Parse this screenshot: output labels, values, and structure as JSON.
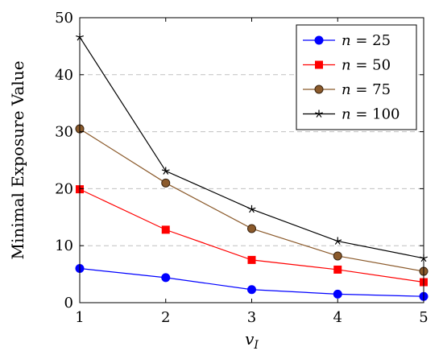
{
  "chart_data": {
    "type": "line",
    "xlabel": "v_I",
    "xlabel_main": "v",
    "xlabel_sub": "I",
    "ylabel": "Minimal Exposure Value",
    "xlim": [
      1,
      5
    ],
    "ylim": [
      0,
      50
    ],
    "x_ticks": [
      1,
      2,
      3,
      4,
      5
    ],
    "y_ticks": [
      0,
      10,
      20,
      30,
      40,
      50
    ],
    "grid": "horizontal dashed",
    "legend_position": "top-right",
    "x": [
      1,
      2,
      3,
      4,
      5
    ],
    "series": [
      {
        "name": "n = 25",
        "legend_var": "n",
        "legend_eq": " = 25",
        "color": "#0000ff",
        "marker": "circle",
        "values": [
          6.0,
          4.4,
          2.3,
          1.5,
          1.1
        ]
      },
      {
        "name": "n = 50",
        "legend_var": "n",
        "legend_eq": " = 50",
        "color": "#ff0000",
        "marker": "square",
        "values": [
          19.9,
          12.8,
          7.5,
          5.8,
          3.6
        ]
      },
      {
        "name": "n = 75",
        "legend_var": "n",
        "legend_eq": " = 75",
        "color": "#8b5a2b",
        "marker": "circle-filled-brown",
        "values": [
          30.5,
          21.0,
          13.0,
          8.2,
          5.5
        ]
      },
      {
        "name": "n = 100",
        "legend_var": "n",
        "legend_eq": " = 100",
        "color": "#000000",
        "marker": "star",
        "values": [
          46.6,
          23.1,
          16.4,
          10.8,
          7.8
        ]
      }
    ]
  }
}
